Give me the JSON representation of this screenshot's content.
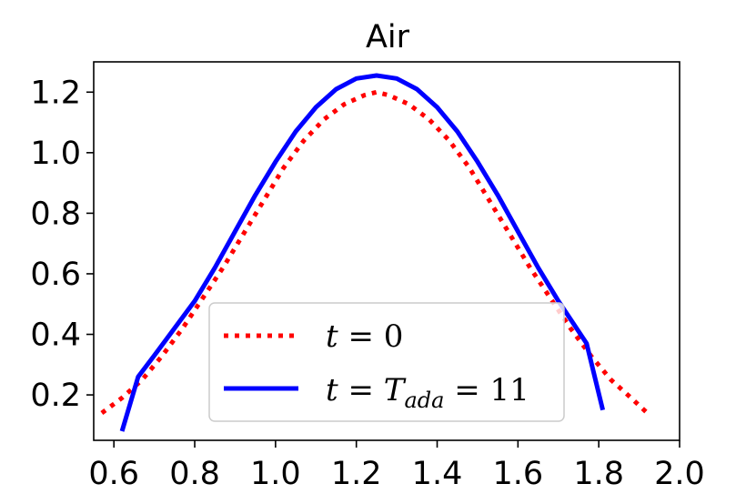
{
  "chart_data": {
    "type": "line",
    "title": "Air",
    "xlabel": "",
    "ylabel": "",
    "xlim": [
      0.55,
      2.0
    ],
    "ylim": [
      0.05,
      1.3
    ],
    "x_ticks": [
      0.6,
      0.8,
      1.0,
      1.2,
      1.4,
      1.6,
      1.8,
      2.0
    ],
    "x_tick_labels": [
      "0.6",
      "0.8",
      "1.0",
      "1.2",
      "1.4",
      "1.6",
      "1.8",
      "2.0"
    ],
    "y_ticks": [
      0.2,
      0.4,
      0.6,
      0.8,
      1.0,
      1.2
    ],
    "y_tick_labels": [
      "0.2",
      "0.4",
      "0.6",
      "0.8",
      "1.0",
      "1.2"
    ],
    "grid": false,
    "legend_position": "lower center",
    "series": [
      {
        "name": "t = 0",
        "style": "dotted",
        "color": "#ff0000",
        "points": [
          [
            0.57,
            0.14
          ],
          [
            0.62,
            0.19
          ],
          [
            0.67,
            0.25
          ],
          [
            0.72,
            0.33
          ],
          [
            0.77,
            0.42
          ],
          [
            0.82,
            0.52
          ],
          [
            0.87,
            0.62
          ],
          [
            0.92,
            0.73
          ],
          [
            0.97,
            0.84
          ],
          [
            1.02,
            0.95
          ],
          [
            1.07,
            1.04
          ],
          [
            1.12,
            1.11
          ],
          [
            1.17,
            1.16
          ],
          [
            1.22,
            1.19
          ],
          [
            1.25,
            1.2
          ],
          [
            1.28,
            1.19
          ],
          [
            1.33,
            1.16
          ],
          [
            1.38,
            1.11
          ],
          [
            1.43,
            1.04
          ],
          [
            1.48,
            0.95
          ],
          [
            1.53,
            0.84
          ],
          [
            1.58,
            0.73
          ],
          [
            1.63,
            0.62
          ],
          [
            1.68,
            0.52
          ],
          [
            1.73,
            0.42
          ],
          [
            1.78,
            0.33
          ],
          [
            1.83,
            0.25
          ],
          [
            1.88,
            0.19
          ],
          [
            1.92,
            0.14
          ]
        ]
      },
      {
        "name": "t = T_ada = 11",
        "style": "solid",
        "color": "#0000ff",
        "points": [
          [
            0.62,
            0.08
          ],
          [
            0.66,
            0.26
          ],
          [
            0.7,
            0.33
          ],
          [
            0.75,
            0.42
          ],
          [
            0.8,
            0.51
          ],
          [
            0.85,
            0.62
          ],
          [
            0.9,
            0.74
          ],
          [
            0.95,
            0.86
          ],
          [
            1.0,
            0.97
          ],
          [
            1.05,
            1.07
          ],
          [
            1.1,
            1.15
          ],
          [
            1.15,
            1.21
          ],
          [
            1.2,
            1.245
          ],
          [
            1.25,
            1.255
          ],
          [
            1.3,
            1.245
          ],
          [
            1.35,
            1.21
          ],
          [
            1.4,
            1.15
          ],
          [
            1.45,
            1.07
          ],
          [
            1.5,
            0.97
          ],
          [
            1.55,
            0.86
          ],
          [
            1.6,
            0.74
          ],
          [
            1.65,
            0.62
          ],
          [
            1.7,
            0.51
          ],
          [
            1.77,
            0.37
          ],
          [
            1.81,
            0.15
          ]
        ]
      }
    ],
    "legend": {
      "entries": [
        {
          "label_parts": [
            "t",
            " = 0"
          ]
        },
        {
          "label_parts": [
            "t",
            " = ",
            "T",
            "ada",
            " = 11"
          ]
        }
      ]
    }
  }
}
